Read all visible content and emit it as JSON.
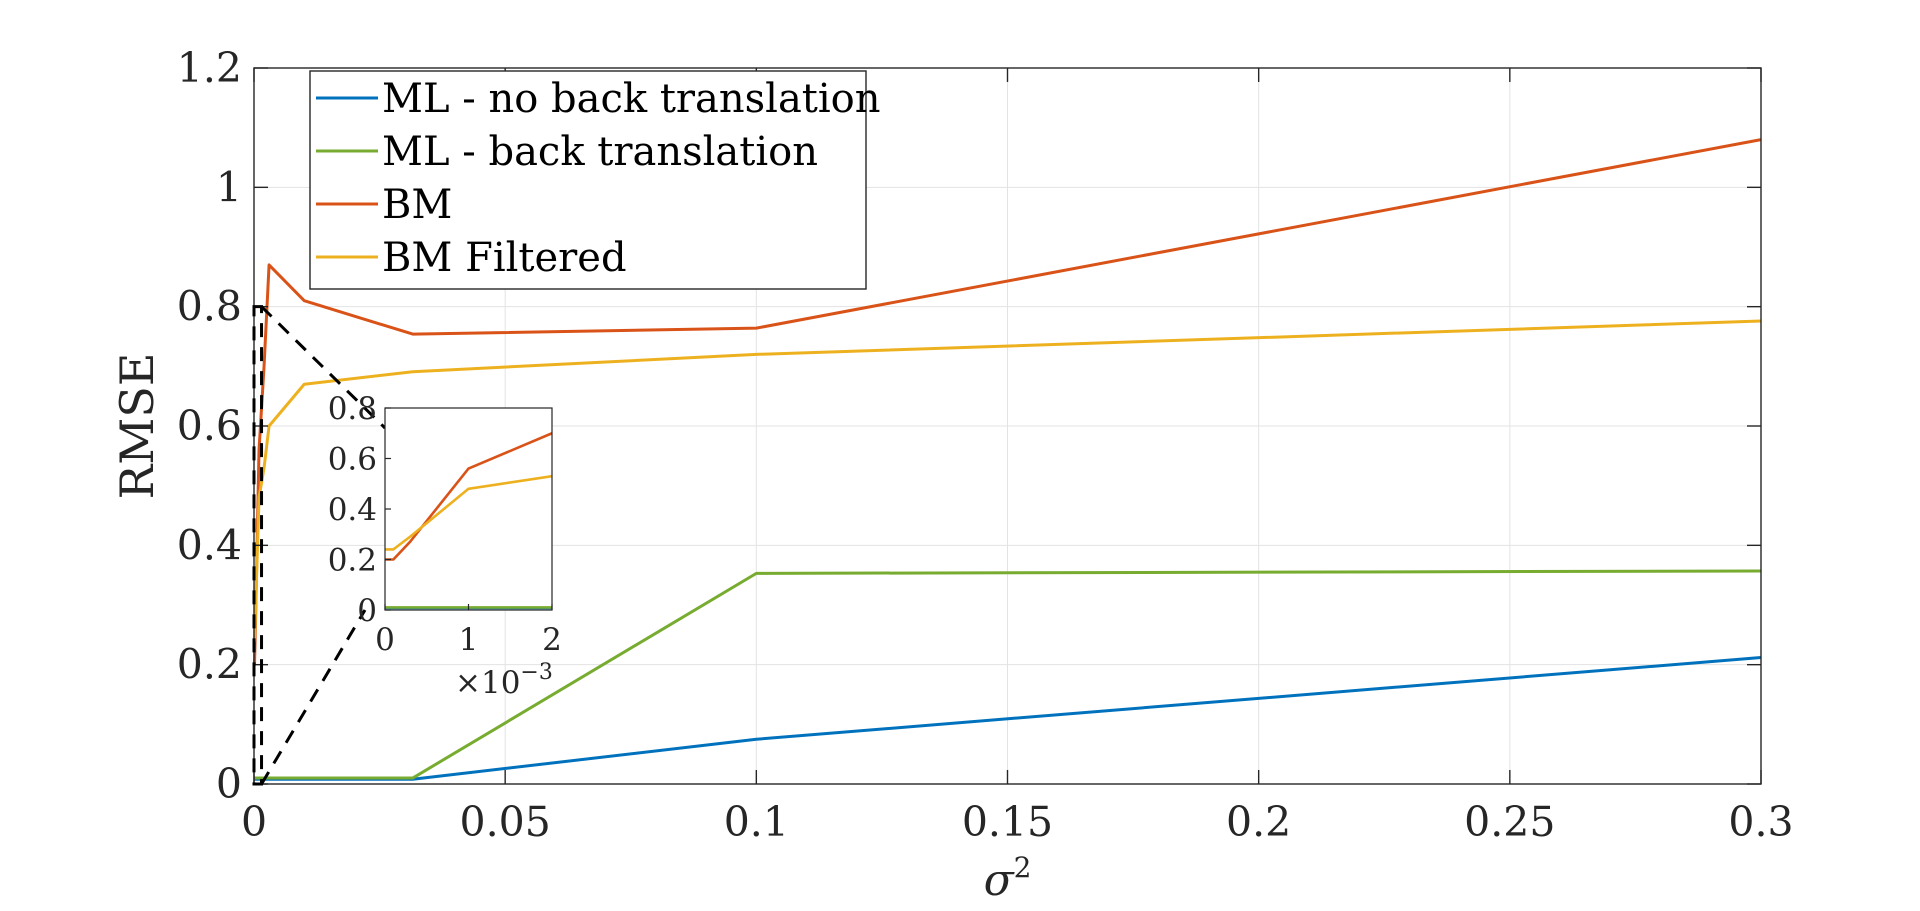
{
  "chart_data": [
    {
      "type": "line",
      "xlabel": "σ²",
      "ylabel": "RMSE",
      "xlim": [
        0,
        0.3
      ],
      "ylim": [
        0,
        1.2
      ],
      "xticks": [
        0,
        0.05,
        0.1,
        0.15,
        0.2,
        0.25,
        0.3
      ],
      "xtick_labels": [
        "0",
        "0.05",
        "0.1",
        "0.15",
        "0.2",
        "0.25",
        "0.3"
      ],
      "yticks": [
        0,
        0.2,
        0.4,
        0.6,
        0.8,
        1,
        1.2
      ],
      "ytick_labels": [
        "0",
        "0.2",
        "0.4",
        "0.6",
        "0.8",
        "1",
        "1.2"
      ],
      "grid": true,
      "legend_position": "top-left",
      "series": [
        {
          "name": "ML - no back translation",
          "color": "#0072BD",
          "x": [
            0,
            0.0001,
            0.0003,
            0.001,
            0.002,
            0.003,
            0.01,
            0.0316,
            0.1,
            0.3
          ],
          "y": [
            0.008,
            0.008,
            0.008,
            0.008,
            0.008,
            0.008,
            0.008,
            0.008,
            0.075,
            0.212
          ]
        },
        {
          "name": "ML - back translation",
          "color": "#77AC30",
          "x": [
            0,
            0.0001,
            0.0003,
            0.001,
            0.002,
            0.003,
            0.01,
            0.0316,
            0.1,
            0.3
          ],
          "y": [
            0.01,
            0.01,
            0.01,
            0.01,
            0.01,
            0.01,
            0.01,
            0.01,
            0.353,
            0.357
          ]
        },
        {
          "name": "BM",
          "color": "#D95319",
          "x": [
            0,
            0.0001,
            0.0003,
            0.001,
            0.002,
            0.003,
            0.01,
            0.0316,
            0.1,
            0.3
          ],
          "y": [
            0.2,
            0.2,
            0.27,
            0.56,
            0.7,
            0.87,
            0.81,
            0.754,
            0.764,
            1.08
          ]
        },
        {
          "name": "BM Filtered",
          "color": "#EDB120",
          "x": [
            0,
            0.0001,
            0.0003,
            0.001,
            0.002,
            0.003,
            0.01,
            0.0316,
            0.1,
            0.3
          ],
          "y": [
            0.24,
            0.24,
            0.29,
            0.48,
            0.53,
            0.6,
            0.67,
            0.691,
            0.72,
            0.776
          ]
        }
      ]
    },
    {
      "type": "line",
      "role": "inset",
      "xlim": [
        0,
        0.002
      ],
      "ylim": [
        0,
        0.8
      ],
      "xticks": [
        0,
        0.001,
        0.002
      ],
      "xtick_labels": [
        "0",
        "1",
        "2"
      ],
      "yticks": [
        0,
        0.2,
        0.4,
        0.6,
        0.8
      ],
      "ytick_labels": [
        "0",
        "0.2",
        "0.4",
        "0.6",
        "0.8"
      ],
      "x_multiplier_label": "×10",
      "x_multiplier_exp": "−3",
      "series": [
        {
          "name": "ML - no back translation",
          "color": "#0072BD",
          "x": [
            0,
            0.0001,
            0.0003,
            0.001,
            0.002
          ],
          "y": [
            0.008,
            0.008,
            0.008,
            0.008,
            0.008
          ]
        },
        {
          "name": "ML - back translation",
          "color": "#77AC30",
          "x": [
            0,
            0.0001,
            0.0003,
            0.001,
            0.002
          ],
          "y": [
            0.01,
            0.01,
            0.01,
            0.01,
            0.01
          ]
        },
        {
          "name": "BM",
          "color": "#D95319",
          "x": [
            0,
            0.0001,
            0.0003,
            0.001,
            0.002
          ],
          "y": [
            0.2,
            0.2,
            0.27,
            0.56,
            0.7
          ]
        },
        {
          "name": "BM Filtered",
          "color": "#EDB120",
          "x": [
            0,
            0.0001,
            0.0003,
            0.001,
            0.002
          ],
          "y": [
            0.24,
            0.24,
            0.29,
            0.48,
            0.53
          ]
        }
      ]
    }
  ],
  "zoom_region": {
    "x": [
      0,
      0.0015
    ],
    "y": [
      0,
      0.8
    ]
  }
}
